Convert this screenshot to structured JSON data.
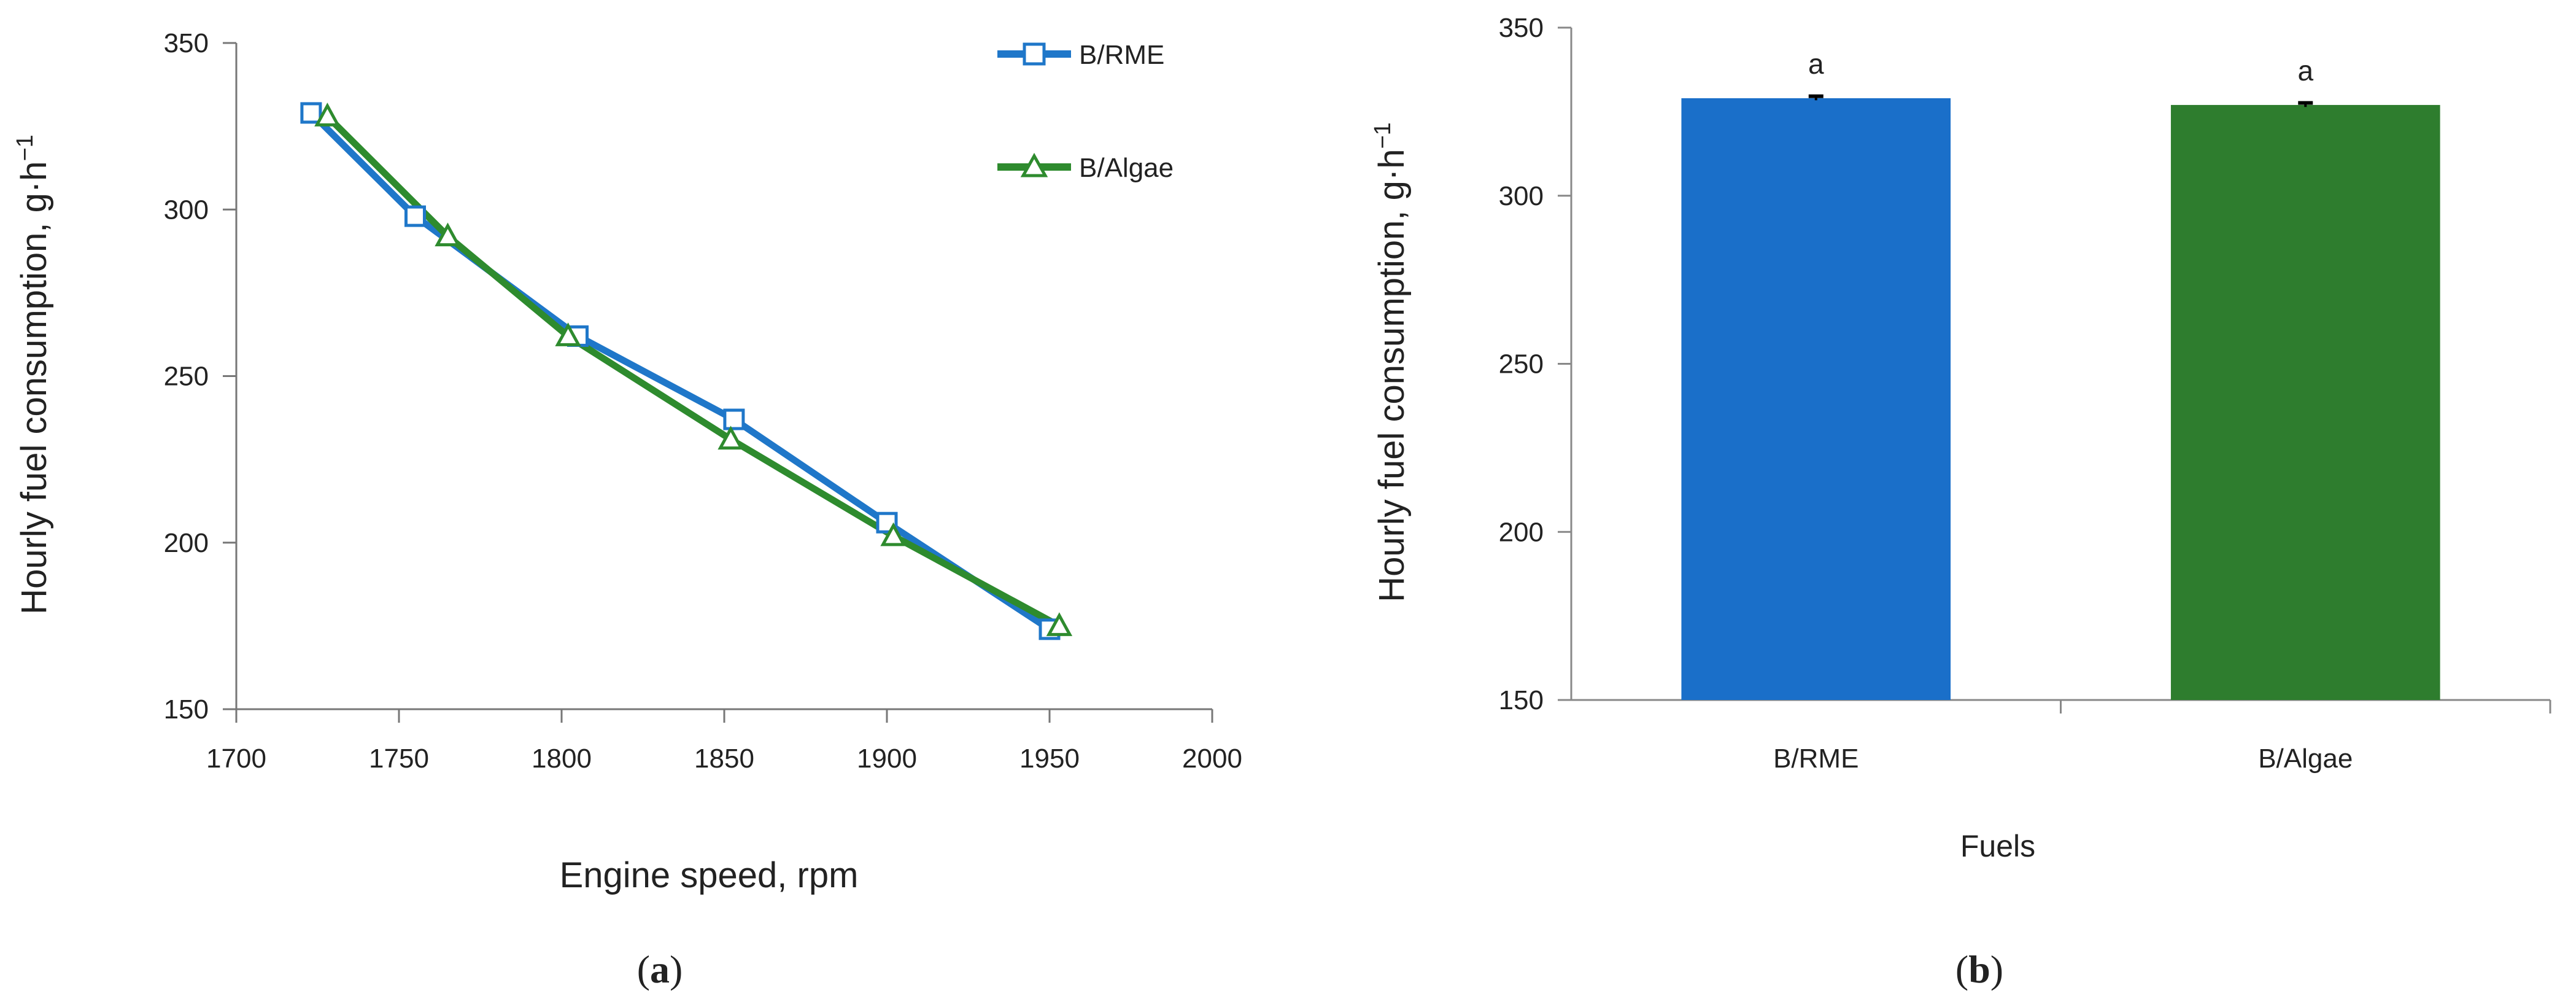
{
  "chart_data": [
    {
      "type": "line",
      "panel_label": "a",
      "title": "",
      "xlabel": "Engine speed, rpm",
      "ylabel": "Hourly fuel consumption, g·h",
      "ylabel_superscript": "−1",
      "xlim": [
        1700,
        2000
      ],
      "ylim": [
        150,
        350
      ],
      "xticks": [
        1700,
        1750,
        1800,
        1850,
        1900,
        1950,
        2000
      ],
      "yticks": [
        150,
        200,
        250,
        300,
        350
      ],
      "grid": false,
      "legend_position": "top-right",
      "series": [
        {
          "name": "B/RME",
          "color": "#1f77c9",
          "marker": "square",
          "x": [
            1723,
            1755,
            1805,
            1853,
            1900,
            1950
          ],
          "y": [
            329,
            298,
            262,
            237,
            206,
            174
          ]
        },
        {
          "name": "B/Algae",
          "color": "#2e8b2e",
          "marker": "triangle",
          "x": [
            1728,
            1765,
            1802,
            1852,
            1902,
            1953
          ],
          "y": [
            328,
            292,
            262,
            231,
            202,
            175
          ]
        }
      ]
    },
    {
      "type": "bar",
      "panel_label": "b",
      "title": "",
      "xlabel": "Fuels",
      "ylabel": "Hourly fuel consumption, g·h",
      "ylabel_superscript": "−1",
      "ylim": [
        150,
        350
      ],
      "yticks": [
        150,
        200,
        250,
        300,
        350
      ],
      "grid": false,
      "categories": [
        "B/RME",
        "B/Algae"
      ],
      "values": [
        329,
        327
      ],
      "errors": [
        0.6,
        0.6
      ],
      "significance": [
        "a",
        "a"
      ],
      "colors": [
        "#1a6fc9",
        "#2e7d2e"
      ]
    }
  ]
}
